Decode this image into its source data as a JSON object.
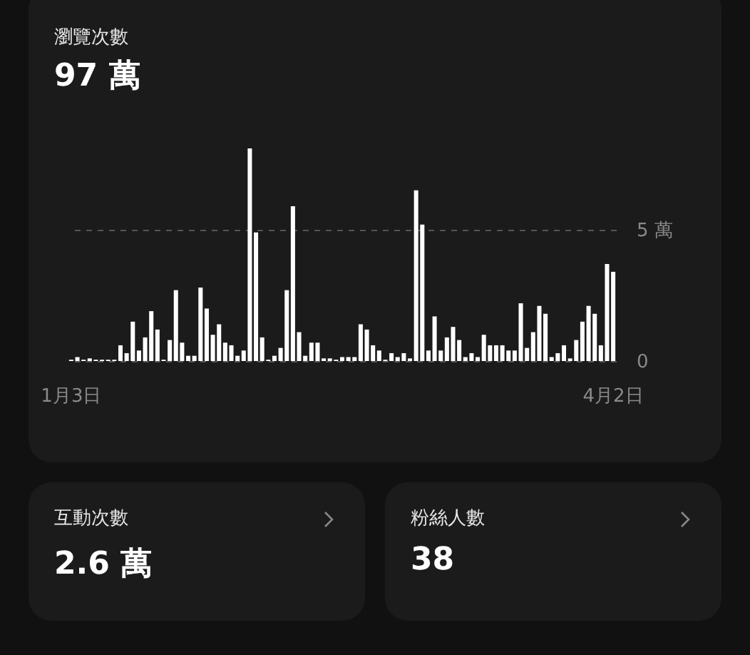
{
  "chart_data": [
    {
      "type": "bar",
      "title": "瀏覽次數",
      "subtitle": "97 萬",
      "categories": [
        "1月3日",
        null,
        null,
        null,
        null,
        null,
        null,
        null,
        null,
        null,
        null,
        null,
        null,
        null,
        null,
        null,
        null,
        null,
        null,
        null,
        null,
        null,
        null,
        null,
        null,
        null,
        null,
        null,
        null,
        null,
        null,
        null,
        null,
        null,
        null,
        null,
        null,
        null,
        null,
        null,
        null,
        null,
        null,
        null,
        null,
        null,
        null,
        null,
        null,
        null,
        null,
        null,
        null,
        null,
        null,
        null,
        null,
        null,
        null,
        null,
        null,
        null,
        null,
        null,
        null,
        null,
        null,
        null,
        null,
        null,
        null,
        null,
        null,
        null,
        null,
        null,
        null,
        null,
        null,
        null,
        null,
        null,
        null,
        null,
        null,
        null,
        null,
        null,
        "4月2日"
      ],
      "values": [
        0.05,
        0.15,
        0.05,
        0.1,
        0.05,
        0.05,
        0.05,
        0.05,
        0.6,
        0.3,
        1.5,
        0.4,
        0.9,
        1.9,
        1.2,
        0.05,
        0.8,
        2.7,
        0.7,
        0.2,
        0.2,
        2.8,
        2.0,
        1.0,
        1.4,
        0.7,
        0.6,
        0.2,
        0.4,
        8.1,
        4.9,
        0.9,
        0.05,
        0.2,
        0.5,
        2.7,
        5.9,
        1.1,
        0.2,
        0.7,
        0.7,
        0.1,
        0.1,
        0.05,
        0.15,
        0.15,
        0.15,
        1.4,
        1.2,
        0.6,
        0.4,
        0.05,
        0.3,
        0.15,
        0.3,
        0.1,
        6.5,
        5.2,
        0.4,
        1.7,
        0.4,
        0.9,
        1.3,
        0.8,
        0.15,
        0.3,
        0.15,
        1.0,
        0.6,
        0.6,
        0.6,
        0.4,
        0.4,
        2.2,
        0.5,
        1.1,
        2.1,
        1.8,
        0.15,
        0.3,
        0.6,
        0.1,
        0.8,
        1.5,
        2.1,
        1.8,
        0.6,
        3.7,
        3.4
      ],
      "color": "#ffffff",
      "ylim": [
        0,
        8.1
      ],
      "yticks": [
        0,
        {
          "value": 5,
          "label": "5 萬"
        }
      ],
      "grid": "y"
    },
    {
      "type": "other",
      "title": "互動次數",
      "subtitle": "2.6 萬"
    },
    {
      "type": "other",
      "title": "粉絲人數",
      "subtitle": "38"
    }
  ]
}
